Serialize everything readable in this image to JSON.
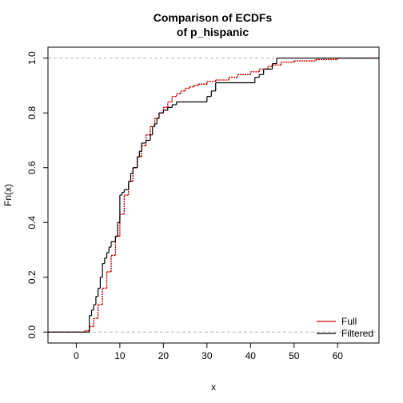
{
  "chart_data": {
    "type": "line",
    "title": [
      "Comparison of ECDFs",
      "of p_hispanic"
    ],
    "xlabel": "x",
    "ylabel": "Fn(x)",
    "xlim": [
      -6.5,
      69.5
    ],
    "ylim": [
      -0.04,
      1.04
    ],
    "xticks": [
      0,
      10,
      20,
      30,
      40,
      50,
      60
    ],
    "yticks": [
      0.0,
      0.2,
      0.4,
      0.6,
      0.8,
      1.0
    ],
    "reference_lines": [
      0,
      1
    ],
    "legend_position": "bottom-right",
    "series": [
      {
        "name": "Full",
        "color": "#cc0000",
        "style": "step",
        "x": [
          -6.5,
          1.5,
          2,
          3,
          4,
          5,
          6,
          7,
          8,
          9,
          10,
          11,
          12,
          13,
          14,
          15,
          16,
          17,
          18,
          19,
          20,
          21,
          22,
          23,
          24,
          25,
          26,
          27,
          28,
          30,
          32,
          35,
          37,
          40,
          42,
          44,
          45,
          47,
          50,
          55,
          60,
          69.5
        ],
        "y": [
          0,
          0,
          0.005,
          0.02,
          0.05,
          0.1,
          0.16,
          0.22,
          0.28,
          0.35,
          0.43,
          0.5,
          0.55,
          0.6,
          0.64,
          0.68,
          0.72,
          0.75,
          0.78,
          0.8,
          0.82,
          0.84,
          0.86,
          0.87,
          0.88,
          0.89,
          0.895,
          0.9,
          0.905,
          0.915,
          0.92,
          0.93,
          0.94,
          0.95,
          0.96,
          0.97,
          0.975,
          0.985,
          0.99,
          0.995,
          1.0,
          1.0
        ]
      },
      {
        "name": "Filtered",
        "color": "#000000",
        "style": "step",
        "x": [
          -6.5,
          3,
          3.5,
          4,
          4.5,
          5,
          5.5,
          6,
          6.5,
          7,
          7.5,
          8,
          9,
          9.5,
          10,
          10.5,
          11,
          12,
          12.5,
          13,
          14,
          14.5,
          15,
          16,
          17,
          17.5,
          18,
          18.5,
          19,
          20,
          21,
          22,
          23,
          24,
          30,
          31,
          32,
          33,
          34,
          35,
          41,
          42,
          43,
          45,
          46,
          69.5
        ],
        "y": [
          0,
          0.06,
          0.08,
          0.1,
          0.13,
          0.16,
          0.2,
          0.25,
          0.27,
          0.29,
          0.31,
          0.33,
          0.35,
          0.4,
          0.5,
          0.51,
          0.52,
          0.55,
          0.58,
          0.6,
          0.64,
          0.66,
          0.69,
          0.7,
          0.72,
          0.75,
          0.76,
          0.78,
          0.8,
          0.81,
          0.82,
          0.83,
          0.84,
          0.84,
          0.86,
          0.88,
          0.91,
          0.91,
          0.91,
          0.91,
          0.93,
          0.94,
          0.96,
          0.98,
          1.0,
          1.0
        ]
      }
    ]
  }
}
